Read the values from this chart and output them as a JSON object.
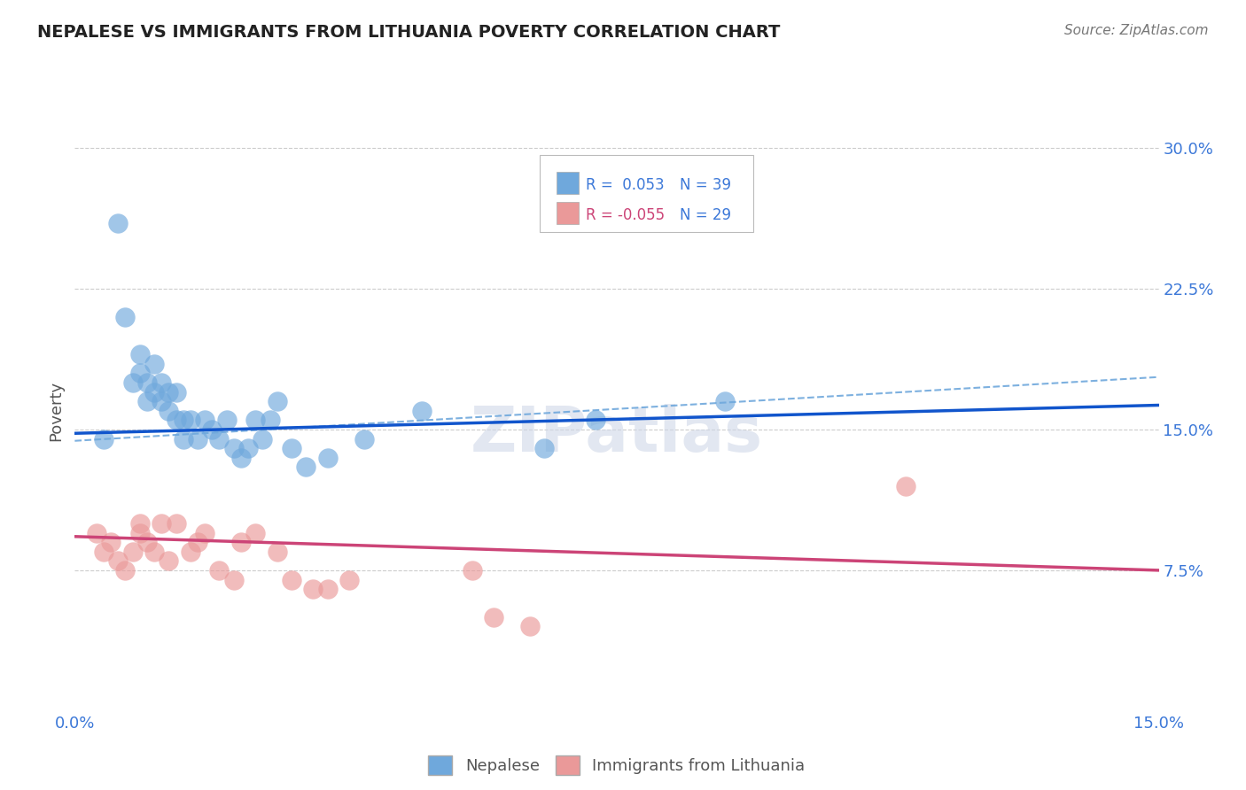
{
  "title": "NEPALESE VS IMMIGRANTS FROM LITHUANIA POVERTY CORRELATION CHART",
  "source": "Source: ZipAtlas.com",
  "ylabel": "Poverty",
  "y_tick_labels": [
    "7.5%",
    "15.0%",
    "22.5%",
    "30.0%"
  ],
  "y_tick_values": [
    0.075,
    0.15,
    0.225,
    0.3
  ],
  "x_min": 0.0,
  "x_max": 0.15,
  "y_min": 0.0,
  "y_max": 0.32,
  "legend_blue_r": "R =  0.053",
  "legend_blue_n": "N = 39",
  "legend_pink_r": "R = -0.055",
  "legend_pink_n": "N = 29",
  "blue_scatter_color": "#6fa8dc",
  "pink_scatter_color": "#ea9999",
  "trend_blue_color": "#1155cc",
  "trend_pink_color": "#cc4477",
  "dashed_blue_color": "#6fa8dc",
  "nepalese_x": [
    0.004,
    0.006,
    0.007,
    0.008,
    0.009,
    0.009,
    0.01,
    0.01,
    0.011,
    0.011,
    0.012,
    0.012,
    0.013,
    0.013,
    0.014,
    0.014,
    0.015,
    0.015,
    0.016,
    0.017,
    0.018,
    0.019,
    0.02,
    0.021,
    0.022,
    0.023,
    0.024,
    0.025,
    0.026,
    0.027,
    0.028,
    0.03,
    0.032,
    0.035,
    0.04,
    0.048,
    0.065,
    0.072,
    0.09
  ],
  "nepalese_y": [
    0.145,
    0.26,
    0.21,
    0.175,
    0.18,
    0.19,
    0.165,
    0.175,
    0.17,
    0.185,
    0.175,
    0.165,
    0.17,
    0.16,
    0.17,
    0.155,
    0.145,
    0.155,
    0.155,
    0.145,
    0.155,
    0.15,
    0.145,
    0.155,
    0.14,
    0.135,
    0.14,
    0.155,
    0.145,
    0.155,
    0.165,
    0.14,
    0.13,
    0.135,
    0.145,
    0.16,
    0.14,
    0.155,
    0.165
  ],
  "lithuania_x": [
    0.003,
    0.004,
    0.005,
    0.006,
    0.007,
    0.008,
    0.009,
    0.009,
    0.01,
    0.011,
    0.012,
    0.013,
    0.014,
    0.016,
    0.017,
    0.018,
    0.02,
    0.022,
    0.023,
    0.025,
    0.028,
    0.03,
    0.033,
    0.035,
    0.038,
    0.055,
    0.058,
    0.063,
    0.115
  ],
  "lithuania_y": [
    0.095,
    0.085,
    0.09,
    0.08,
    0.075,
    0.085,
    0.1,
    0.095,
    0.09,
    0.085,
    0.1,
    0.08,
    0.1,
    0.085,
    0.09,
    0.095,
    0.075,
    0.07,
    0.09,
    0.095,
    0.085,
    0.07,
    0.065,
    0.065,
    0.07,
    0.075,
    0.05,
    0.045,
    0.12
  ],
  "watermark": "ZIPatlas",
  "background_color": "#ffffff",
  "grid_color": "#cccccc"
}
